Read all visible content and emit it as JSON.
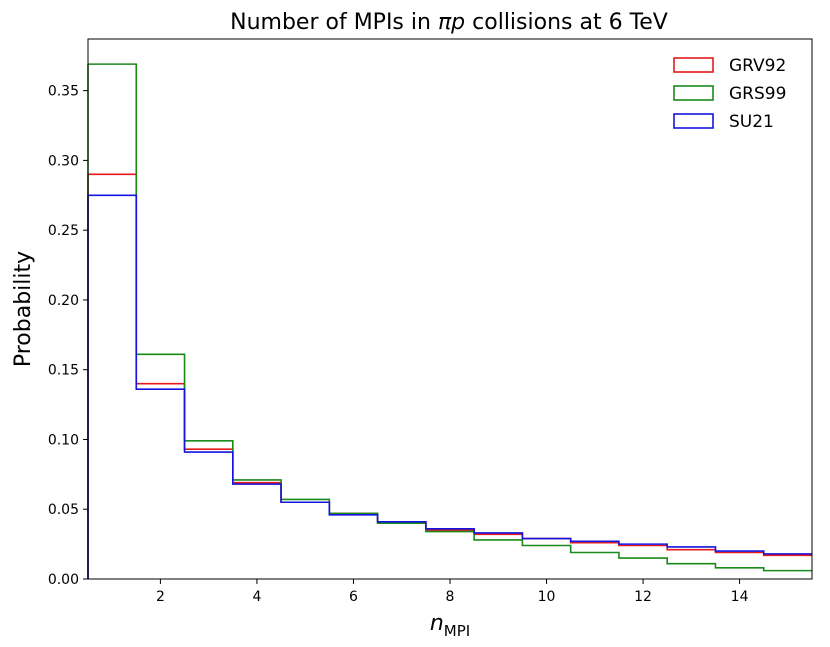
{
  "chart_data": {
    "type": "step-histogram",
    "title_prefix": "Number of MPIs in ",
    "title_symbol": "πp",
    "title_suffix": " collisions at 6 TeV",
    "xlabel_main": "n",
    "xlabel_sub": "MPI",
    "ylabel": "Probability",
    "xlim": [
      0.5,
      15.5
    ],
    "ylim": [
      0.0,
      0.387
    ],
    "xticks": [
      2,
      4,
      6,
      8,
      10,
      12,
      14
    ],
    "xtick_labels": [
      "2",
      "4",
      "6",
      "8",
      "10",
      "12",
      "14"
    ],
    "yticks": [
      0.0,
      0.05,
      0.1,
      0.15,
      0.2,
      0.25,
      0.3,
      0.35
    ],
    "ytick_labels": [
      "0.00",
      "0.05",
      "0.10",
      "0.15",
      "0.20",
      "0.25",
      "0.30",
      "0.35"
    ],
    "bin_edges": [
      0.5,
      1.5,
      2.5,
      3.5,
      4.5,
      5.5,
      6.5,
      7.5,
      8.5,
      9.5,
      10.5,
      11.5,
      12.5,
      13.5,
      14.5,
      15.5
    ],
    "legend_position": "top-right",
    "series": [
      {
        "name": "GRV92",
        "color": "#e41a1c",
        "values": [
          0.29,
          0.14,
          0.093,
          0.069,
          0.055,
          0.047,
          0.041,
          0.035,
          0.032,
          0.029,
          0.026,
          0.024,
          0.021,
          0.019,
          0.017
        ]
      },
      {
        "name": "GRS99",
        "color": "#1a8a1a",
        "values": [
          0.369,
          0.161,
          0.099,
          0.071,
          0.057,
          0.047,
          0.04,
          0.034,
          0.028,
          0.024,
          0.019,
          0.015,
          0.011,
          0.008,
          0.006
        ]
      },
      {
        "name": "SU21",
        "color": "#1515e0",
        "values": [
          0.275,
          0.136,
          0.091,
          0.068,
          0.055,
          0.046,
          0.041,
          0.036,
          0.033,
          0.029,
          0.027,
          0.025,
          0.023,
          0.02,
          0.018
        ]
      }
    ]
  }
}
